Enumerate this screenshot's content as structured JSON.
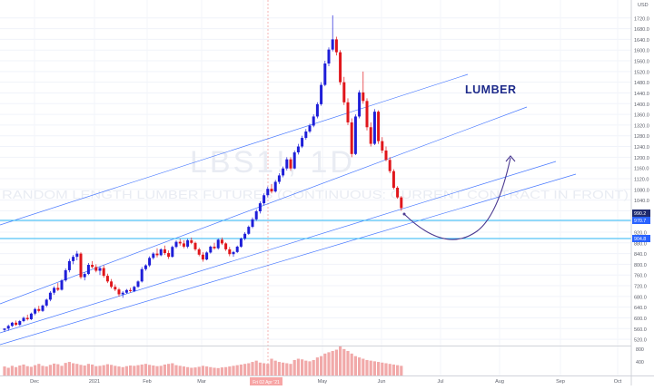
{
  "chart_data": {
    "type": "candlestick",
    "watermark": {
      "symbol": "LBS1!, 1D",
      "description": "RANDOM LENGTH LUMBER FUTURES (CONTINUOUS: CURRENT CONTRACT IN FRONT)"
    },
    "annotation_label": "LUMBER",
    "currency": "USD",
    "y_axis": {
      "range": [
        500,
        1760
      ],
      "ticks": [
        "1720.0",
        "1680.0",
        "1640.0",
        "1600.0",
        "1560.0",
        "1520.0",
        "1480.0",
        "1440.0",
        "1400.0",
        "1360.0",
        "1320.0",
        "1280.0",
        "1240.0",
        "1200.0",
        "1160.0",
        "1120.0",
        "1080.0",
        "1040.0",
        "1000.0",
        "960.0",
        "920.0",
        "880.0",
        "840.0",
        "800.0",
        "760.0",
        "720.0",
        "680.0",
        "640.0",
        "600.0",
        "560.0",
        "520.0"
      ]
    },
    "x_axis": {
      "ticks": [
        "Dec",
        "2021",
        "Feb",
        "Mar",
        "Apr",
        "May",
        "Jun",
        "Jul",
        "Aug",
        "Sep",
        "Oct"
      ],
      "highlighted_date": "Fri 02 Apr '21"
    },
    "price_badges": [
      {
        "value": "990.2",
        "color": "#1e2a6e"
      },
      {
        "value": "970.7",
        "color": "#2962ff"
      },
      {
        "value": "904.8",
        "color": "#2962ff"
      }
    ],
    "volume_axis_ticks": [
      "800",
      "400"
    ],
    "series": [
      [
        1,
        555,
        562,
        548,
        560
      ],
      [
        2,
        560,
        575,
        552,
        570
      ],
      [
        3,
        570,
        585,
        566,
        582
      ],
      [
        4,
        582,
        590,
        570,
        574
      ],
      [
        5,
        574,
        592,
        570,
        588
      ],
      [
        6,
        588,
        605,
        584,
        600
      ],
      [
        7,
        600,
        612,
        590,
        595
      ],
      [
        8,
        595,
        620,
        592,
        616
      ],
      [
        9,
        616,
        638,
        610,
        633
      ],
      [
        10,
        633,
        645,
        620,
        626
      ],
      [
        11,
        626,
        650,
        622,
        646
      ],
      [
        12,
        646,
        672,
        640,
        668
      ],
      [
        13,
        668,
        700,
        662,
        694
      ],
      [
        14,
        694,
        718,
        686,
        712
      ],
      [
        15,
        712,
        730,
        700,
        705
      ],
      [
        16,
        705,
        745,
        702,
        740
      ],
      [
        17,
        740,
        785,
        735,
        778
      ],
      [
        18,
        778,
        820,
        770,
        812
      ],
      [
        19,
        812,
        835,
        800,
        828
      ],
      [
        20,
        828,
        850,
        815,
        840
      ],
      [
        21,
        840,
        845,
        745,
        752
      ],
      [
        22,
        752,
        770,
        740,
        764
      ],
      [
        23,
        764,
        805,
        760,
        798
      ],
      [
        24,
        798,
        812,
        785,
        790
      ],
      [
        25,
        790,
        800,
        770,
        776
      ],
      [
        26,
        776,
        792,
        760,
        786
      ],
      [
        27,
        786,
        796,
        750,
        757
      ],
      [
        28,
        757,
        765,
        730,
        736
      ],
      [
        29,
        736,
        745,
        710,
        716
      ],
      [
        30,
        716,
        725,
        700,
        706
      ],
      [
        31,
        706,
        712,
        680,
        688
      ],
      [
        32,
        688,
        700,
        675,
        694
      ],
      [
        33,
        694,
        708,
        690,
        704
      ],
      [
        34,
        704,
        712,
        695,
        700
      ],
      [
        35,
        700,
        720,
        696,
        716
      ],
      [
        36,
        716,
        740,
        712,
        736
      ],
      [
        37,
        736,
        790,
        732,
        782
      ],
      [
        38,
        782,
        800,
        776,
        796
      ],
      [
        39,
        796,
        830,
        790,
        824
      ],
      [
        40,
        824,
        845,
        818,
        840
      ],
      [
        41,
        840,
        860,
        826,
        834
      ],
      [
        42,
        834,
        860,
        830,
        856
      ],
      [
        43,
        856,
        870,
        835,
        842
      ],
      [
        44,
        842,
        852,
        820,
        828
      ],
      [
        45,
        828,
        870,
        825,
        865
      ],
      [
        46,
        865,
        890,
        860,
        884
      ],
      [
        47,
        884,
        895,
        870,
        878
      ],
      [
        48,
        878,
        890,
        860,
        866
      ],
      [
        49,
        866,
        895,
        860,
        890
      ],
      [
        50,
        890,
        900,
        875,
        880
      ],
      [
        51,
        880,
        885,
        850,
        856
      ],
      [
        52,
        856,
        862,
        830,
        836
      ],
      [
        53,
        836,
        845,
        810,
        818
      ],
      [
        54,
        818,
        848,
        815,
        844
      ],
      [
        55,
        844,
        870,
        840,
        866
      ],
      [
        56,
        866,
        880,
        855,
        860
      ],
      [
        57,
        860,
        896,
        855,
        892
      ],
      [
        58,
        892,
        900,
        872,
        878
      ],
      [
        59,
        878,
        882,
        850,
        856
      ],
      [
        60,
        856,
        865,
        830,
        838
      ],
      [
        61,
        838,
        850,
        828,
        846
      ],
      [
        62,
        846,
        870,
        842,
        866
      ],
      [
        63,
        866,
        900,
        862,
        896
      ],
      [
        64,
        896,
        920,
        890,
        914
      ],
      [
        65,
        914,
        945,
        910,
        940
      ],
      [
        66,
        940,
        975,
        935,
        968
      ],
      [
        67,
        968,
        1005,
        962,
        998
      ],
      [
        68,
        998,
        1035,
        990,
        1028
      ],
      [
        69,
        1028,
        1065,
        1020,
        1058
      ],
      [
        70,
        1058,
        1090,
        1050,
        1082
      ],
      [
        71,
        1082,
        1100,
        1065,
        1072
      ],
      [
        72,
        1072,
        1115,
        1068,
        1108
      ],
      [
        73,
        1108,
        1140,
        1100,
        1132
      ],
      [
        74,
        1132,
        1165,
        1125,
        1158
      ],
      [
        75,
        1158,
        1200,
        1150,
        1192
      ],
      [
        76,
        1192,
        1200,
        1150,
        1158
      ],
      [
        77,
        1158,
        1225,
        1155,
        1218
      ],
      [
        78,
        1218,
        1250,
        1210,
        1240
      ],
      [
        79,
        1240,
        1280,
        1234,
        1272
      ],
      [
        80,
        1272,
        1305,
        1265,
        1296
      ],
      [
        81,
        1296,
        1325,
        1290,
        1318
      ],
      [
        82,
        1318,
        1360,
        1312,
        1352
      ],
      [
        83,
        1352,
        1405,
        1345,
        1398
      ],
      [
        84,
        1398,
        1480,
        1392,
        1470
      ],
      [
        85,
        1470,
        1560,
        1465,
        1550
      ],
      [
        86,
        1550,
        1610,
        1540,
        1602
      ],
      [
        87,
        1602,
        1730,
        1595,
        1640
      ],
      [
        88,
        1640,
        1650,
        1580,
        1592
      ],
      [
        89,
        1592,
        1600,
        1470,
        1480
      ],
      [
        90,
        1480,
        1500,
        1395,
        1405
      ],
      [
        91,
        1405,
        1420,
        1320,
        1330
      ],
      [
        92,
        1330,
        1345,
        1200,
        1212
      ],
      [
        93,
        1212,
        1360,
        1208,
        1352
      ],
      [
        94,
        1352,
        1450,
        1345,
        1442
      ],
      [
        95,
        1442,
        1520,
        1400,
        1410
      ],
      [
        96,
        1410,
        1420,
        1300,
        1312
      ],
      [
        97,
        1312,
        1330,
        1240,
        1250
      ],
      [
        98,
        1250,
        1380,
        1245,
        1370
      ],
      [
        99,
        1370,
        1375,
        1250,
        1260
      ],
      [
        100,
        1260,
        1275,
        1215,
        1225
      ],
      [
        101,
        1225,
        1240,
        1185,
        1190
      ],
      [
        102,
        1190,
        1200,
        1140,
        1148
      ],
      [
        103,
        1148,
        1155,
        1080,
        1086
      ],
      [
        104,
        1086,
        1092,
        1045,
        1050
      ],
      [
        105,
        1050,
        1055,
        1000,
        1010
      ]
    ],
    "volume": [
      280,
      240,
      300,
      260,
      310,
      340,
      290,
      270,
      320,
      360,
      300,
      280,
      330,
      370,
      350,
      300,
      390,
      420,
      380,
      360,
      330,
      310,
      360,
      340,
      290,
      300,
      320,
      350,
      330,
      300,
      280,
      260,
      290,
      310,
      300,
      320,
      340,
      360,
      330,
      310,
      290,
      300,
      340,
      360,
      380,
      320,
      300,
      280,
      260,
      240,
      250,
      270,
      300,
      280,
      260,
      240,
      230,
      250,
      260,
      280,
      300,
      320,
      340,
      360,
      380,
      420,
      460,
      400,
      380,
      360,
      520,
      460,
      420,
      400,
      380,
      360,
      480,
      520,
      500,
      460,
      440,
      480,
      560,
      600,
      680,
      720,
      760,
      800,
      900,
      820,
      760,
      680,
      600,
      560,
      520,
      480,
      460,
      440,
      420,
      400,
      380,
      360,
      340,
      320,
      300
    ]
  }
}
